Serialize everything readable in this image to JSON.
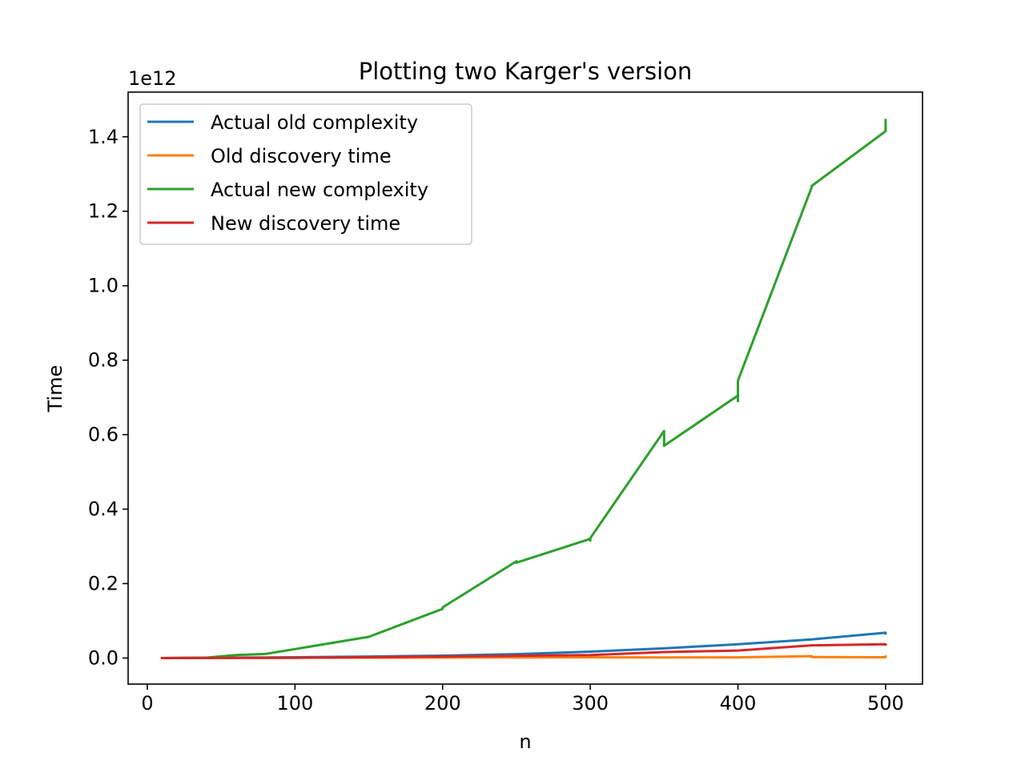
{
  "chart_data": {
    "type": "line",
    "title": "Plotting two Karger's version",
    "xlabel": "n",
    "ylabel": "Time",
    "y_offset_label": "1e12",
    "xlim": [
      -13,
      525
    ],
    "ylim": [
      -0.07,
      1.52
    ],
    "x_ticks": [
      0,
      100,
      200,
      300,
      400,
      500
    ],
    "x_tick_labels": [
      "0",
      "100",
      "200",
      "300",
      "400",
      "500"
    ],
    "y_ticks": [
      0.0,
      0.2,
      0.4,
      0.6,
      0.8,
      1.0,
      1.2,
      1.4
    ],
    "y_tick_labels": [
      "0.0",
      "0.2",
      "0.4",
      "0.6",
      "0.8",
      "1.0",
      "1.2",
      "1.4"
    ],
    "grid": false,
    "legend_position": "top-left",
    "series": [
      {
        "name": "Actual old complexity",
        "color": "#1f77b4",
        "points": [
          [
            10,
            0.0
          ],
          [
            40,
            0.0008
          ],
          [
            60,
            0.0012
          ],
          [
            80,
            0.0016
          ],
          [
            100,
            0.002
          ],
          [
            150,
            0.004
          ],
          [
            200,
            0.0065
          ],
          [
            250,
            0.0105
          ],
          [
            300,
            0.017
          ],
          [
            350,
            0.026
          ],
          [
            400,
            0.037
          ],
          [
            450,
            0.05
          ],
          [
            500,
            0.068
          ],
          [
            500,
            0.066
          ]
        ]
      },
      {
        "name": "Old discovery time",
        "color": "#ff7f0e",
        "points": [
          [
            10,
            0.0
          ],
          [
            40,
            0.0002
          ],
          [
            60,
            0.0003
          ],
          [
            80,
            0.0004
          ],
          [
            100,
            0.0006
          ],
          [
            150,
            0.001
          ],
          [
            200,
            0.0012
          ],
          [
            250,
            0.0015
          ],
          [
            300,
            0.002
          ],
          [
            350,
            0.0015
          ],
          [
            400,
            0.0018
          ],
          [
            450,
            0.005
          ],
          [
            450,
            0.0025
          ],
          [
            500,
            0.002
          ],
          [
            500,
            0.004
          ]
        ]
      },
      {
        "name": "Actual new complexity",
        "color": "#2ca02c",
        "points": [
          [
            10,
            0.0
          ],
          [
            40,
            0.001
          ],
          [
            60,
            0.008
          ],
          [
            80,
            0.011
          ],
          [
            100,
            0.024
          ],
          [
            150,
            0.057
          ],
          [
            200,
            0.132
          ],
          [
            200,
            0.136
          ],
          [
            250,
            0.26
          ],
          [
            250,
            0.256
          ],
          [
            300,
            0.32
          ],
          [
            300,
            0.315
          ],
          [
            300,
            0.322
          ],
          [
            350,
            0.61
          ],
          [
            350,
            0.57
          ],
          [
            400,
            0.705
          ],
          [
            400,
            0.69
          ],
          [
            400,
            0.745
          ],
          [
            450,
            1.265
          ],
          [
            450,
            1.268
          ],
          [
            500,
            1.415
          ],
          [
            500,
            1.445
          ]
        ]
      },
      {
        "name": "New discovery time",
        "color": "#d62728",
        "points": [
          [
            10,
            0.0
          ],
          [
            40,
            0.0002
          ],
          [
            60,
            0.0004
          ],
          [
            80,
            0.0006
          ],
          [
            100,
            0.0008
          ],
          [
            150,
            0.002
          ],
          [
            200,
            0.004
          ],
          [
            250,
            0.006
          ],
          [
            300,
            0.008
          ],
          [
            350,
            0.016
          ],
          [
            400,
            0.02
          ],
          [
            450,
            0.034
          ],
          [
            500,
            0.037
          ],
          [
            500,
            0.036
          ]
        ]
      }
    ]
  }
}
